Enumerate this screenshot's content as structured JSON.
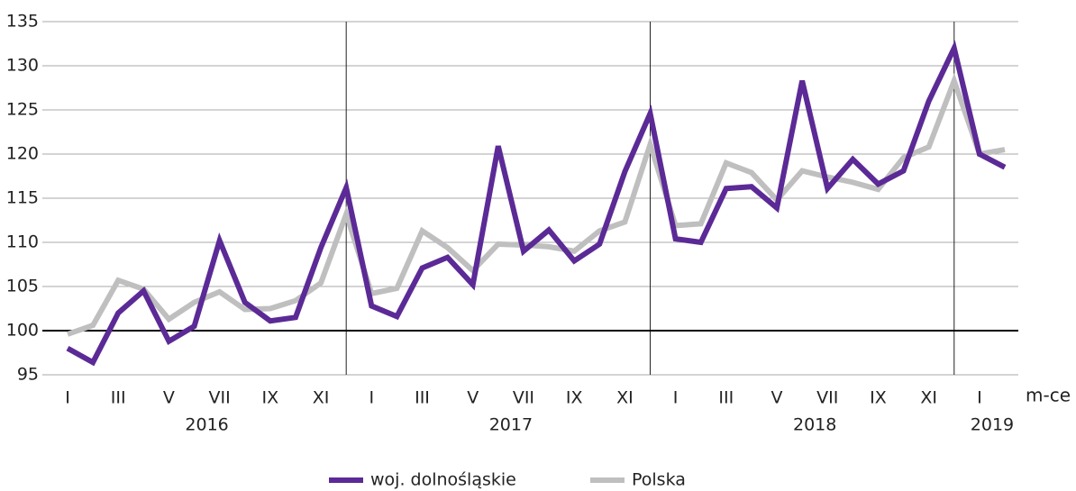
{
  "chart_data": {
    "type": "line",
    "categories": [
      "I",
      null,
      "III",
      null,
      "V",
      null,
      "VII",
      null,
      "IX",
      null,
      "XI",
      null,
      "I",
      null,
      "III",
      null,
      "V",
      null,
      "VII",
      null,
      "IX",
      null,
      "XI",
      null,
      "I",
      null,
      "III",
      null,
      "V",
      null,
      "VII",
      null,
      "IX",
      null,
      "XI",
      null,
      "I",
      null
    ],
    "years": [
      "2016",
      "2017",
      "2018",
      "2019"
    ],
    "x_label": "m-ce",
    "ylim": [
      95,
      135
    ],
    "yticks": [
      95,
      100,
      105,
      110,
      115,
      120,
      125,
      130,
      135
    ],
    "reference_line": 100,
    "grid": true,
    "legend": "bottom",
    "series": [
      {
        "name": "woj. dolnośląskie",
        "color": "#5b2a96",
        "values": [
          98.0,
          96.4,
          102.0,
          104.5,
          98.8,
          100.5,
          110.2,
          103.2,
          101.1,
          101.5,
          109.4,
          116.2,
          102.8,
          101.6,
          107.1,
          108.3,
          105.2,
          120.9,
          109.0,
          111.4,
          107.9,
          109.8,
          118.0,
          124.6,
          110.4,
          110.0,
          116.1,
          116.3,
          113.9,
          128.3,
          116.1,
          119.4,
          116.6,
          118.1,
          126.0,
          132.0,
          120.0,
          118.5
        ]
      },
      {
        "name": "Polska",
        "color": "#bfbfbf",
        "values": [
          99.6,
          100.6,
          105.7,
          104.7,
          101.3,
          103.2,
          104.4,
          102.4,
          102.5,
          103.4,
          105.4,
          113.2,
          104.2,
          104.8,
          111.3,
          109.4,
          106.8,
          109.8,
          109.7,
          109.5,
          109.0,
          111.3,
          112.3,
          121.1,
          111.9,
          112.1,
          119.0,
          117.9,
          114.8,
          118.1,
          117.4,
          116.8,
          116.0,
          119.6,
          120.8,
          128.3,
          120.0,
          120.5
        ]
      }
    ]
  }
}
